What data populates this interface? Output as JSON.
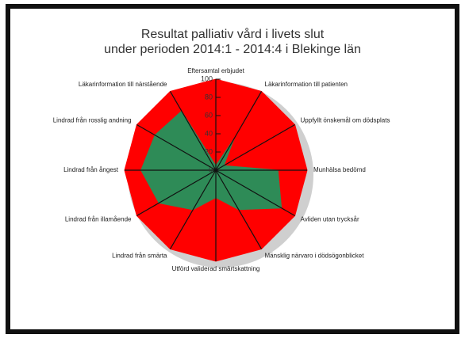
{
  "chart_data": {
    "type": "radar",
    "title": "Resultat palliativ vård i livets slut",
    "subtitle": "under perioden 2014:1 - 2014:4 i Blekinge län",
    "categories": [
      "Eftersamtal erbjudet",
      "Läkarinformation till patienten",
      "Uppfyllt önskemål om dödsplats",
      "Munhälsa bedömd",
      "Avliden utan trycksår",
      "Mänsklig närvaro i dödsögonblicket",
      "Utförd validerad smärtskattning",
      "Lindrad från smärta",
      "Lindrad från illamående",
      "Lindrad från ångest",
      "Lindrad från rosslig andning",
      "Läkarinformation till närstående"
    ],
    "series": [
      {
        "color": "#ff0000",
        "values": [
          100,
          100,
          100,
          100,
          100,
          100,
          100,
          100,
          100,
          100,
          100,
          100
        ]
      },
      {
        "color": "#2e8b57",
        "values": [
          5,
          40,
          10,
          68,
          83,
          50,
          30,
          50,
          72,
          82,
          77,
          75
        ]
      }
    ],
    "ylim": [
      0,
      100
    ],
    "yticks": [
      0,
      20,
      40,
      60,
      80,
      100
    ],
    "grid": true
  }
}
